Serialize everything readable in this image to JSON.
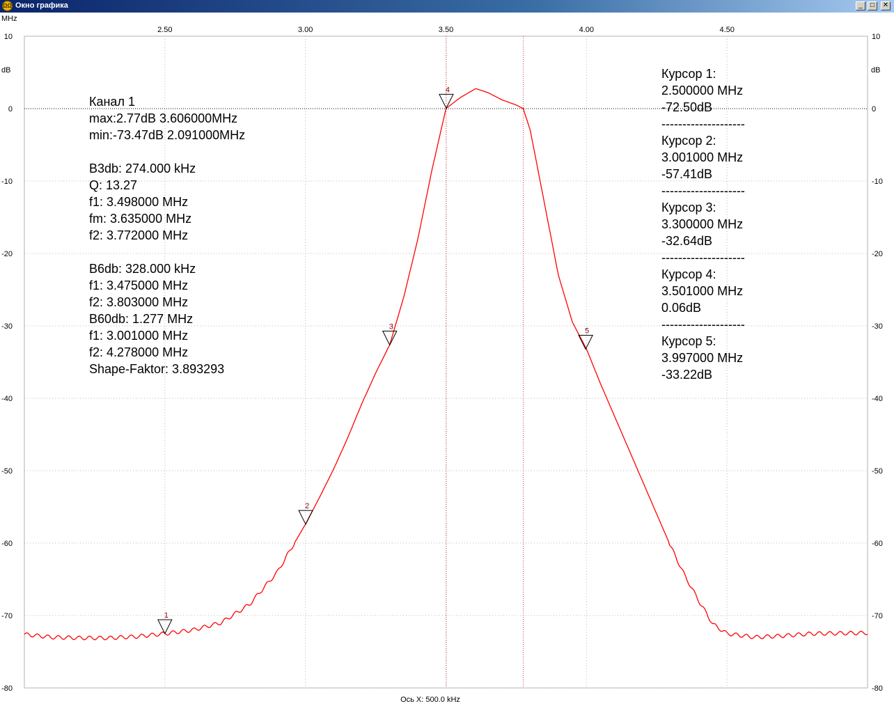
{
  "window": {
    "title": "Окно графика",
    "icon": "oscilloscope-icon",
    "buttons": {
      "minimize": "_",
      "maximize": "□",
      "close": "✕"
    }
  },
  "chart_data": {
    "type": "line",
    "x_unit": "MHz",
    "y_unit": "dB",
    "xlim": [
      2.0,
      5.0
    ],
    "ylim": [
      -80,
      10
    ],
    "x_ticks": [
      2.5,
      3.0,
      3.5,
      4.0,
      4.5
    ],
    "x_tick_labels": [
      "2.50",
      "3.00",
      "3.50",
      "4.00",
      "4.50"
    ],
    "y_ticks": [
      10,
      0,
      -10,
      -20,
      -30,
      -40,
      -50,
      -60,
      -70,
      -80
    ],
    "y_tick_labels": [
      "10",
      "0",
      "-10",
      "-20",
      "-30",
      "-40",
      "-50",
      "-60",
      "-70",
      "-80"
    ],
    "xlabel": "Ось X: 500.0 kHz",
    "grid": true,
    "reference_line_db": 0,
    "vertical_markers_mhz": [
      3.501,
      3.775
    ],
    "line_color": "#ff0000",
    "marker_color": "#8b0000",
    "series": [
      {
        "name": "Канал 1",
        "x": [
          2.0,
          2.1,
          2.2,
          2.3,
          2.4,
          2.5,
          2.6,
          2.7,
          2.8,
          2.9,
          3.0,
          3.05,
          3.1,
          3.15,
          3.2,
          3.25,
          3.3,
          3.35,
          3.4,
          3.45,
          3.5,
          3.55,
          3.606,
          3.65,
          3.7,
          3.75,
          3.775,
          3.8,
          3.85,
          3.9,
          3.95,
          4.0,
          4.05,
          4.1,
          4.15,
          4.2,
          4.25,
          4.3,
          4.35,
          4.4,
          4.45,
          4.5,
          4.6,
          4.7,
          4.8,
          5.0
        ],
        "y": [
          -72.6,
          -73.0,
          -73.1,
          -73.1,
          -72.9,
          -72.5,
          -72.0,
          -71.0,
          -68.5,
          -64.0,
          -57.4,
          -53.7,
          -49.8,
          -45.5,
          -40.8,
          -36.5,
          -32.6,
          -26.0,
          -18.0,
          -8.5,
          0.0,
          1.5,
          2.77,
          2.2,
          1.2,
          0.5,
          0.0,
          -3.0,
          -13.0,
          -23.0,
          -29.5,
          -33.2,
          -38.0,
          -42.5,
          -47.0,
          -51.5,
          -56.0,
          -60.5,
          -64.5,
          -68.0,
          -71.2,
          -72.5,
          -73.0,
          -72.8,
          -72.5,
          -72.4
        ]
      }
    ],
    "markers": [
      {
        "label": "1",
        "x": 2.5,
        "y": -72.5
      },
      {
        "label": "2",
        "x": 3.001,
        "y": -57.41
      },
      {
        "label": "3",
        "x": 3.3,
        "y": -32.64
      },
      {
        "label": "4",
        "x": 3.501,
        "y": 0.06
      },
      {
        "label": "5",
        "x": 3.997,
        "y": -33.22
      }
    ]
  },
  "axis_labels": {
    "top_left_unit": "MHz",
    "y_unit_left": "dB",
    "y_unit_right": "dB"
  },
  "info_left": [
    "Канал 1",
    "max:2.77dB 3.606000MHz",
    "min:-73.47dB 2.091000MHz",
    "",
    "B3db: 274.000 kHz",
    "Q: 13.27",
    "f1: 3.498000 MHz",
    "fm: 3.635000 MHz",
    "f2: 3.772000 MHz",
    "",
    "B6db: 328.000 kHz",
    "f1: 3.475000 MHz",
    "f2: 3.803000 MHz",
    "B60db: 1.277 MHz",
    "f1: 3.001000 MHz",
    "f2: 4.278000 MHz",
    "Shape-Faktor: 3.893293"
  ],
  "info_right": [
    "Курсор 1:",
    "2.500000 MHz",
    "-72.50dB",
    "--------------------",
    "Курсор 2:",
    "3.001000 MHz",
    "-57.41dB",
    "--------------------",
    "Курсор 3:",
    "3.300000 MHz",
    "-32.64dB",
    "--------------------",
    "Курсор 4:",
    "3.501000 MHz",
    "0.06dB",
    "--------------------",
    "Курсор 5:",
    "3.997000 MHz",
    "-33.22dB"
  ]
}
